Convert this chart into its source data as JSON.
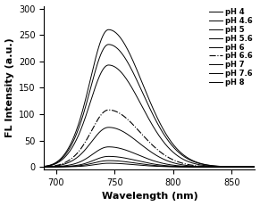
{
  "title": "",
  "xlabel": "Wavelength (nm)",
  "ylabel": "FL Intensity (a.u.)",
  "xlim": [
    690,
    870
  ],
  "ylim": [
    -5,
    305
  ],
  "yticks": [
    0,
    50,
    100,
    150,
    200,
    250,
    300
  ],
  "xticks": [
    700,
    750,
    800,
    850
  ],
  "peak_wavelength": 745,
  "series": [
    {
      "label": "pH 4",
      "peak": 7,
      "sigma_l": 12,
      "sigma_r": 22,
      "linestyle": "-",
      "color": "#000000",
      "linewidth": 0.7
    },
    {
      "label": "pH 4.6",
      "peak": 12,
      "sigma_l": 13,
      "sigma_r": 23,
      "linestyle": "-",
      "color": "#000000",
      "linewidth": 0.7
    },
    {
      "label": "pH 5",
      "peak": 20,
      "sigma_l": 13,
      "sigma_r": 24,
      "linestyle": "-",
      "color": "#000000",
      "linewidth": 0.7
    },
    {
      "label": "pH 5.6",
      "peak": 38,
      "sigma_l": 14,
      "sigma_r": 25,
      "linestyle": "-",
      "color": "#000000",
      "linewidth": 0.7
    },
    {
      "label": "pH 6",
      "peak": 75,
      "sigma_l": 15,
      "sigma_r": 26,
      "linestyle": "-",
      "color": "#000000",
      "linewidth": 0.7
    },
    {
      "label": "pH 6.6",
      "peak": 108,
      "sigma_l": 15,
      "sigma_r": 27,
      "linestyle": "-.",
      "color": "#000000",
      "linewidth": 0.8
    },
    {
      "label": "pH 7",
      "peak": 193,
      "sigma_l": 16,
      "sigma_r": 28,
      "linestyle": "-",
      "color": "#000000",
      "linewidth": 0.7
    },
    {
      "label": "pH 7.6",
      "peak": 232,
      "sigma_l": 16,
      "sigma_r": 29,
      "linestyle": "-",
      "color": "#000000",
      "linewidth": 0.7
    },
    {
      "label": "pH 8",
      "peak": 260,
      "sigma_l": 16,
      "sigma_r": 29,
      "linestyle": "-",
      "color": "#000000",
      "linewidth": 0.7
    }
  ],
  "background_color": "#ffffff",
  "legend_fontsize": 6.0,
  "axis_fontsize": 8,
  "tick_fontsize": 7
}
